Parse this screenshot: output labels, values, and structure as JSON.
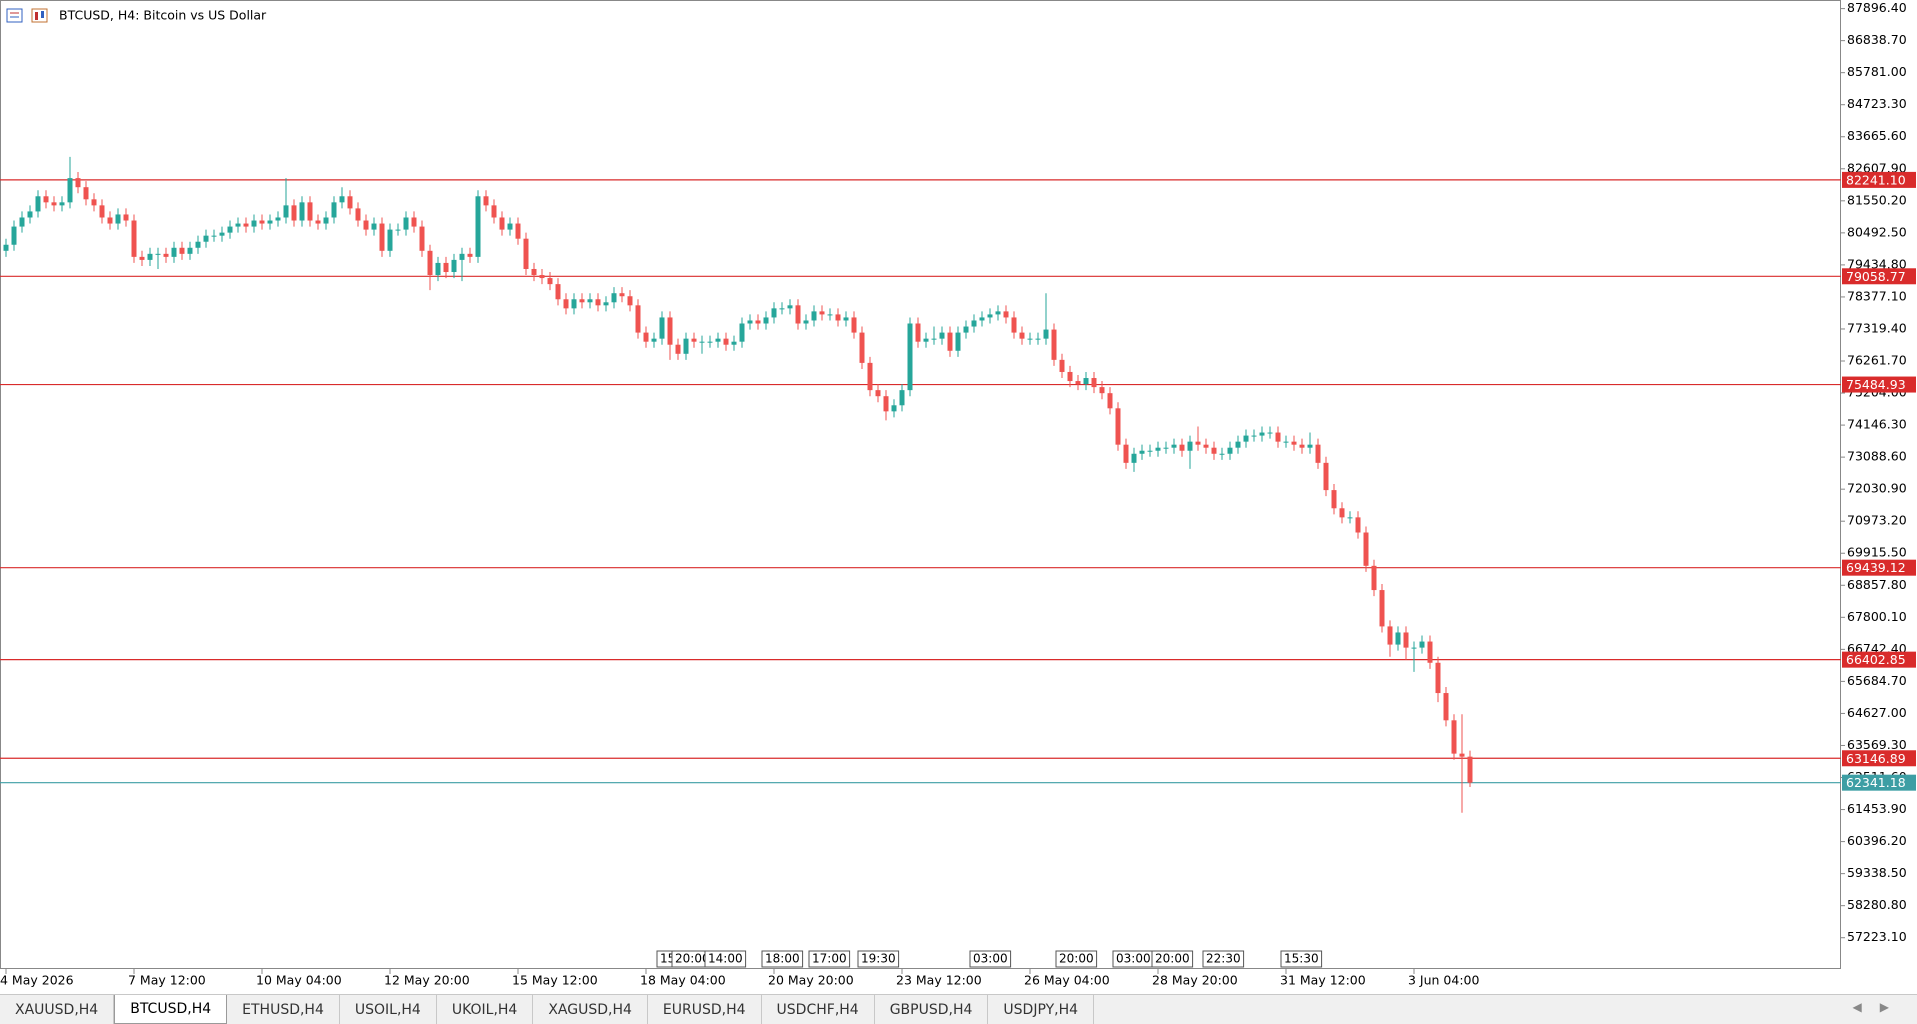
{
  "chart_data": {
    "type": "candlestick",
    "title": "BTCUSD, H4:  Bitcoin vs US Dollar",
    "up_color": "#26a69a",
    "down_color": "#ef5350",
    "grid": false,
    "ylim": [
      56190,
      88180
    ],
    "yticks": [
      {
        "value": 87896.4,
        "label": "87896.40"
      },
      {
        "value": 86838.7,
        "label": "86838.70"
      },
      {
        "value": 85781,
        "label": "85781.00"
      },
      {
        "value": 84723.3,
        "label": "84723.30"
      },
      {
        "value": 83665.6,
        "label": "83665.60"
      },
      {
        "value": 82607.9,
        "label": "82607.90"
      },
      {
        "value": 81550.2,
        "label": "81550.20"
      },
      {
        "value": 80492.5,
        "label": "80492.50"
      },
      {
        "value": 79434.8,
        "label": "79434.80"
      },
      {
        "value": 78377.1,
        "label": "78377.10"
      },
      {
        "value": 77319.4,
        "label": "77319.40"
      },
      {
        "value": 76261.7,
        "label": "76261.70"
      },
      {
        "value": 75204,
        "label": "75204.00"
      },
      {
        "value": 74146.3,
        "label": "74146.30"
      },
      {
        "value": 73088.6,
        "label": "73088.60"
      },
      {
        "value": 72030.9,
        "label": "72030.90"
      },
      {
        "value": 70973.2,
        "label": "70973.20"
      },
      {
        "value": 69915.5,
        "label": "69915.50"
      },
      {
        "value": 68857.8,
        "label": "68857.80"
      },
      {
        "value": 67800.1,
        "label": "67800.10"
      },
      {
        "value": 66742.4,
        "label": "66742.40"
      },
      {
        "value": 65684.7,
        "label": "65684.70"
      },
      {
        "value": 64627,
        "label": "64627.00"
      },
      {
        "value": 63569.3,
        "label": "63569.30"
      },
      {
        "value": 62511.6,
        "label": "62511.60"
      },
      {
        "value": 61453.9,
        "label": "61453.90"
      },
      {
        "value": 60396.2,
        "label": "60396.20"
      },
      {
        "value": 59338.5,
        "label": "59338.50"
      },
      {
        "value": 58280.8,
        "label": "58280.80"
      },
      {
        "value": 57223.1,
        "label": "57223.10"
      }
    ],
    "levels": [
      {
        "value": 82241.1,
        "label": "82241.10",
        "color": "#d92b2b"
      },
      {
        "value": 79058.77,
        "label": "79058.77",
        "color": "#d92b2b"
      },
      {
        "value": 75484.93,
        "label": "75484.93",
        "color": "#d92b2b"
      },
      {
        "value": 69439.12,
        "label": "69439.12",
        "color": "#d92b2b"
      },
      {
        "value": 66402.85,
        "label": "66402.85",
        "color": "#d92b2b"
      },
      {
        "value": 63146.89,
        "label": "63146.89",
        "color": "#d92b2b"
      }
    ],
    "current_price": {
      "value": 62341.18,
      "label": "62341.18",
      "color": "#3d9ea4"
    },
    "event_markers": [
      "15",
      "20:00",
      "14:00",
      "18:00",
      "17:00",
      "19:30",
      "03:00",
      "20:00",
      "03:00",
      "20:00",
      "22:30",
      "15:30"
    ],
    "categories": [
      "4 May 2026",
      null,
      null,
      null,
      null,
      null,
      null,
      null,
      null,
      null,
      null,
      null,
      null,
      null,
      null,
      null,
      "7 May 12:00",
      null,
      null,
      null,
      null,
      null,
      null,
      null,
      null,
      null,
      null,
      null,
      null,
      null,
      null,
      null,
      "10 May 04:00",
      null,
      null,
      null,
      null,
      null,
      null,
      null,
      null,
      null,
      null,
      null,
      null,
      null,
      null,
      null,
      "12 May 20:00",
      null,
      null,
      null,
      null,
      null,
      null,
      null,
      null,
      null,
      null,
      null,
      null,
      null,
      null,
      null,
      "15 May 12:00",
      null,
      null,
      null,
      null,
      null,
      null,
      null,
      null,
      null,
      null,
      null,
      null,
      null,
      null,
      null,
      "18 May 04:00",
      null,
      null,
      null,
      null,
      null,
      null,
      null,
      null,
      null,
      null,
      null,
      null,
      null,
      null,
      null,
      "20 May 20:00",
      null,
      null,
      null,
      null,
      null,
      null,
      null,
      null,
      null,
      null,
      null,
      null,
      null,
      null,
      null,
      "23 May 12:00",
      null,
      null,
      null,
      null,
      null,
      null,
      null,
      null,
      null,
      null,
      null,
      null,
      null,
      null,
      null,
      "26 May 04:00",
      null,
      null,
      null,
      null,
      null,
      null,
      null,
      null,
      null,
      null,
      null,
      null,
      null,
      null,
      null,
      "28 May 20:00",
      null,
      null,
      null,
      null,
      null,
      null,
      null,
      null,
      null,
      null,
      null,
      null,
      null,
      null,
      null,
      "31 May 12:00",
      null,
      null,
      null,
      null,
      null,
      null,
      null,
      null,
      null,
      null,
      null,
      null,
      null,
      null,
      null,
      "3 Jun 04:00",
      null,
      null,
      null,
      null,
      null,
      null,
      null
    ],
    "open": [
      79900,
      80100,
      80700,
      81000,
      81200,
      81700,
      81500,
      81400,
      81500,
      82300,
      82000,
      81600,
      81400,
      81000,
      80800,
      81100,
      80900,
      79700,
      79600,
      79800,
      79800,
      79700,
      80000,
      79800,
      80000,
      80200,
      80400,
      80400,
      80500,
      80700,
      80800,
      80700,
      80900,
      80800,
      80900,
      81000,
      81400,
      80900,
      81500,
      80900,
      80800,
      81000,
      81500,
      81700,
      81300,
      80900,
      80600,
      80800,
      79900,
      80600,
      80600,
      81000,
      80700,
      79900,
      79100,
      79500,
      79200,
      79600,
      79800,
      79700,
      81700,
      81400,
      81000,
      80600,
      80800,
      80300,
      79300,
      79100,
      79000,
      78800,
      78300,
      78000,
      78300,
      78200,
      78300,
      78100,
      78200,
      78500,
      78400,
      78100,
      77200,
      76900,
      77000,
      77700,
      76800,
      76500,
      77000,
      76900,
      76900,
      76900,
      77000,
      76800,
      76900,
      77500,
      77600,
      77500,
      77700,
      78000,
      78000,
      78100,
      77500,
      77600,
      77900,
      77800,
      77800,
      77600,
      77700,
      77200,
      76200,
      75300,
      75100,
      74600,
      74800,
      75300,
      77500,
      76900,
      77000,
      77000,
      77200,
      76600,
      77200,
      77400,
      77600,
      77700,
      77800,
      77900,
      77700,
      77200,
      77000,
      77000,
      77000,
      77300,
      76300,
      75900,
      75600,
      75500,
      75700,
      75400,
      75200,
      74700,
      73500,
      72900,
      73200,
      73300,
      73300,
      73400,
      73400,
      73500,
      73300,
      73600,
      73500,
      73400,
      73200,
      73200,
      73400,
      73600,
      73800,
      73800,
      73900,
      73900,
      73600,
      73600,
      73500,
      73400,
      73500,
      72900,
      72000,
      71400,
      71100,
      71100,
      70600,
      69500,
      68700,
      67500,
      66900,
      67300,
      66800,
      66800,
      67000,
      66300,
      65300,
      64400,
      63300,
      63200
    ],
    "high": [
      80300,
      80900,
      81200,
      81400,
      81900,
      81900,
      81700,
      81700,
      83000,
      82500,
      82200,
      81800,
      81600,
      81200,
      81300,
      81300,
      81100,
      79900,
      80000,
      80000,
      80000,
      80200,
      80200,
      80200,
      80400,
      80600,
      80600,
      80700,
      80900,
      81000,
      81000,
      81100,
      81100,
      81100,
      81200,
      82300,
      81600,
      81700,
      81700,
      81100,
      81200,
      81700,
      82000,
      81900,
      81500,
      81100,
      81000,
      81000,
      80800,
      80800,
      81200,
      81200,
      80900,
      80100,
      79700,
      79700,
      79800,
      80000,
      80000,
      81900,
      81900,
      81600,
      81200,
      81000,
      81000,
      80500,
      79500,
      79300,
      79200,
      79000,
      78500,
      78500,
      78500,
      78500,
      78500,
      78400,
      78700,
      78700,
      78600,
      78300,
      77400,
      77200,
      77900,
      77900,
      77000,
      77200,
      77200,
      77100,
      77100,
      77200,
      77200,
      77100,
      77700,
      77800,
      77800,
      77900,
      78200,
      78200,
      78300,
      78300,
      77800,
      78100,
      78100,
      78000,
      78000,
      77900,
      77900,
      77400,
      76400,
      75500,
      75300,
      75000,
      75500,
      77700,
      77700,
      77200,
      77400,
      77400,
      77400,
      77400,
      77600,
      77800,
      77900,
      78000,
      78100,
      78100,
      77900,
      77400,
      77200,
      77200,
      78500,
      77500,
      76500,
      76100,
      75800,
      75900,
      75900,
      75600,
      75400,
      74900,
      73700,
      73400,
      73500,
      73500,
      73600,
      73600,
      73700,
      73700,
      73800,
      74100,
      73700,
      73600,
      73400,
      73600,
      73800,
      74000,
      74000,
      74100,
      74100,
      74100,
      73800,
      73800,
      73700,
      73900,
      73700,
      73100,
      72200,
      71600,
      71300,
      71300,
      70800,
      69700,
      68900,
      67700,
      67500,
      67500,
      67000,
      67200,
      67200,
      66500,
      65500,
      64600,
      64600,
      63400
    ],
    "low": [
      79700,
      79900,
      80500,
      80800,
      81000,
      81300,
      81200,
      81200,
      81300,
      81800,
      81400,
      81200,
      80800,
      80600,
      80600,
      80700,
      79500,
      79400,
      79400,
      79300,
      79500,
      79500,
      79600,
      79600,
      79800,
      80000,
      80200,
      80200,
      80300,
      80500,
      80500,
      80500,
      80600,
      80600,
      80700,
      80800,
      80700,
      80700,
      80700,
      80600,
      80600,
      80800,
      81300,
      81100,
      80700,
      80400,
      80400,
      79700,
      79700,
      80400,
      80400,
      80500,
      79700,
      78600,
      78900,
      79000,
      79000,
      78900,
      79500,
      79500,
      81200,
      80800,
      80400,
      80400,
      80100,
      79100,
      78900,
      78800,
      78600,
      78100,
      77800,
      77800,
      78000,
      78000,
      77900,
      77900,
      78000,
      78200,
      77900,
      77000,
      76700,
      76700,
      76800,
      76300,
      76300,
      76300,
      76700,
      76500,
      76700,
      76700,
      76600,
      76600,
      76700,
      77300,
      77300,
      77300,
      77500,
      77800,
      77800,
      77300,
      77300,
      77400,
      77600,
      77600,
      77400,
      77400,
      77000,
      76000,
      75100,
      74900,
      74300,
      74400,
      74600,
      75100,
      76700,
      76700,
      76800,
      76800,
      76400,
      76400,
      77000,
      77200,
      77400,
      77500,
      77600,
      77500,
      77000,
      76800,
      76800,
      76800,
      76800,
      76100,
      75700,
      75400,
      75300,
      75300,
      75200,
      75000,
      74500,
      73300,
      72700,
      72600,
      73000,
      73100,
      73100,
      73200,
      73200,
      73100,
      72700,
      73300,
      73200,
      73000,
      73000,
      73000,
      73200,
      73400,
      73600,
      73600,
      73700,
      73400,
      73400,
      73300,
      73200,
      73200,
      72700,
      71800,
      71200,
      70900,
      70900,
      70400,
      69300,
      68500,
      67300,
      66500,
      66700,
      66400,
      66000,
      66600,
      66100,
      65000,
      64200,
      63100,
      61350,
      62200
    ],
    "close": [
      80100,
      80700,
      81000,
      81200,
      81700,
      81500,
      81400,
      81500,
      82300,
      82000,
      81600,
      81400,
      81000,
      80800,
      81100,
      80900,
      79700,
      79600,
      79800,
      79800,
      79700,
      80000,
      79800,
      80000,
      80200,
      80400,
      80400,
      80500,
      80700,
      80800,
      80700,
      80900,
      80800,
      80900,
      81000,
      81400,
      80900,
      81500,
      80900,
      80800,
      81000,
      81500,
      81700,
      81300,
      80900,
      80600,
      80800,
      79900,
      80600,
      80600,
      81000,
      80700,
      79900,
      79100,
      79500,
      79200,
      79600,
      79800,
      79700,
      81700,
      81400,
      81000,
      80600,
      80800,
      80300,
      79300,
      79100,
      79000,
      78800,
      78300,
      78000,
      78300,
      78200,
      78300,
      78100,
      78200,
      78500,
      78400,
      78100,
      77200,
      76900,
      77000,
      77700,
      76800,
      76500,
      77000,
      76900,
      76900,
      76900,
      77000,
      76800,
      76900,
      77500,
      77600,
      77500,
      77700,
      78000,
      78000,
      78100,
      77500,
      77600,
      77900,
      77800,
      77800,
      77600,
      77700,
      77200,
      76200,
      75300,
      75100,
      74600,
      74800,
      75300,
      77500,
      76900,
      77000,
      77000,
      77200,
      76600,
      77200,
      77400,
      77600,
      77700,
      77800,
      77900,
      77700,
      77200,
      77000,
      77000,
      77000,
      77300,
      76300,
      75900,
      75600,
      75500,
      75700,
      75400,
      75200,
      74700,
      73500,
      72900,
      73200,
      73300,
      73300,
      73400,
      73400,
      73500,
      73300,
      73600,
      73500,
      73400,
      73200,
      73200,
      73400,
      73600,
      73800,
      73800,
      73900,
      73900,
      73600,
      73600,
      73500,
      73400,
      73500,
      72900,
      72000,
      71400,
      71100,
      71100,
      70600,
      69500,
      68700,
      67500,
      66900,
      67300,
      66800,
      66800,
      67000,
      66300,
      65300,
      64400,
      63300,
      63200,
      62341
    ]
  },
  "tabs": {
    "items": [
      "XAUUSD,H4",
      "BTCUSD,H4",
      "ETHUSD,H4",
      "USOIL,H4",
      "UKOIL,H4",
      "XAGUSD,H4",
      "EURUSD,H4",
      "USDCHF,H4",
      "GBPUSD,H4",
      "USDJPY,H4"
    ],
    "active": 1
  }
}
